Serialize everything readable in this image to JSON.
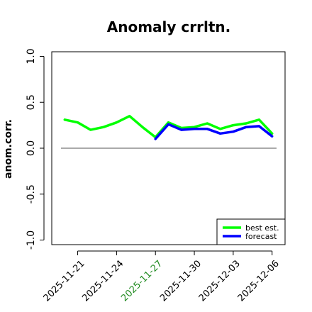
{
  "chart_data": {
    "type": "line",
    "title": "Anomaly crrltn.",
    "ylabel": "anom.corr.",
    "ylim": [
      -1.05,
      1.05
    ],
    "yticks": [
      "-1.0",
      "-0.5",
      "0.0",
      "0.5",
      "1.0"
    ],
    "ytick_values": [
      -1.0,
      -0.5,
      0.0,
      0.5,
      1.0
    ],
    "xlim": [
      "2025-11-19",
      "2025-12-07"
    ],
    "xticks": [
      {
        "label": "2025-11-21",
        "date": "2025-11-21",
        "color": "#000000"
      },
      {
        "label": "2025-11-24",
        "date": "2025-11-24",
        "color": "#000000"
      },
      {
        "label": "2025-11-27",
        "date": "2025-11-27",
        "color": "#228b22"
      },
      {
        "label": "2025-11-30",
        "date": "2025-11-30",
        "color": "#000000"
      },
      {
        "label": "2025-12-03",
        "date": "2025-12-03",
        "color": "#000000"
      },
      {
        "label": "2025-12-06",
        "date": "2025-12-06",
        "color": "#000000"
      }
    ],
    "reference_line": 0.0,
    "grid": false,
    "legend_position": "bottom-right",
    "series": [
      {
        "name": "best est.",
        "color": "#00ff00",
        "x": [
          "2025-11-20",
          "2025-11-21",
          "2025-11-22",
          "2025-11-23",
          "2025-11-24",
          "2025-11-25",
          "2025-11-26",
          "2025-11-27",
          "2025-11-28",
          "2025-11-29",
          "2025-11-30",
          "2025-12-01",
          "2025-12-02",
          "2025-12-03",
          "2025-12-04",
          "2025-12-05",
          "2025-12-06"
        ],
        "values": [
          0.31,
          0.28,
          0.2,
          0.23,
          0.28,
          0.35,
          0.23,
          0.12,
          0.28,
          0.22,
          0.23,
          0.27,
          0.21,
          0.25,
          0.27,
          0.31,
          0.16
        ]
      },
      {
        "name": "forecast",
        "color": "#0000ff",
        "x": [
          "2025-11-27",
          "2025-11-28",
          "2025-11-29",
          "2025-11-30",
          "2025-12-01",
          "2025-12-02",
          "2025-12-03",
          "2025-12-04",
          "2025-12-05",
          "2025-12-06"
        ],
        "values": [
          0.1,
          0.26,
          0.2,
          0.21,
          0.21,
          0.16,
          0.18,
          0.23,
          0.24,
          0.13
        ]
      }
    ]
  }
}
